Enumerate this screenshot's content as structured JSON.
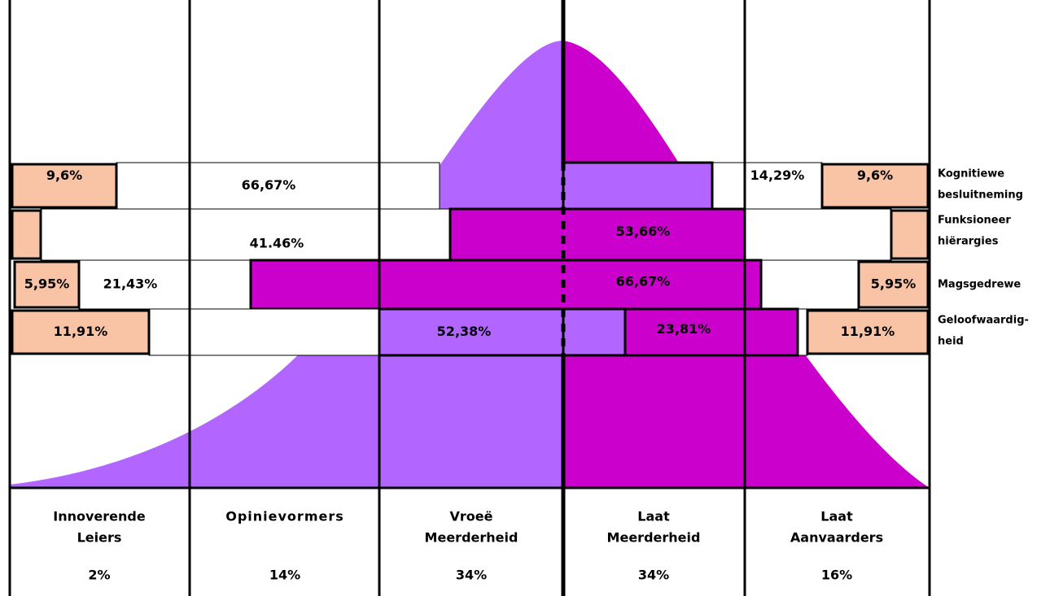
{
  "rows": [
    {
      "name": [
        "Kognitiewe",
        "besluitneming"
      ],
      "left_box": "9,6%",
      "left_text": "66,67%",
      "right_text": "14,29%",
      "right_box": "9,6%"
    },
    {
      "name": [
        "Funksioneer",
        "hiërargies"
      ],
      "left_text": "41.46%",
      "right_text": "53,66%"
    },
    {
      "name": [
        "Magsgedrewe"
      ],
      "left_box": "5,95%",
      "left_text": "21,43%",
      "right_text": "66,67%",
      "right_box": "5,95%"
    },
    {
      "name": [
        "Geloofwaardig-",
        "heid"
      ],
      "left_box": "11,91%",
      "left_text": "52,38%",
      "right_text": "23,81%",
      "right_box": "11,91%"
    }
  ],
  "columns": [
    {
      "name": [
        "Innoverende",
        "Leiers"
      ],
      "share": "2%"
    },
    {
      "name": [
        "Opinievormers"
      ],
      "share": "14%"
    },
    {
      "name": [
        "Vroeë",
        "Meerderheid"
      ],
      "share": "34%"
    },
    {
      "name": [
        "Laat",
        "Meerderheid"
      ],
      "share": "34%"
    },
    {
      "name": [
        "Laat",
        "Aanvaarders"
      ],
      "share": "16%"
    }
  ]
}
